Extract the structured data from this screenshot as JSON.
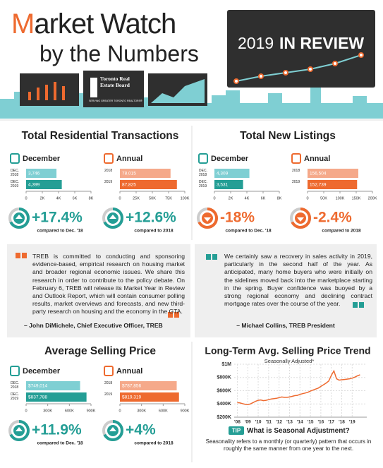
{
  "header": {
    "title": "Market Watch",
    "subtitle": "by the Numbers",
    "review_year": "2019",
    "review_label": "IN REVIEW",
    "logo_name": "Toronto Real Estate Board",
    "logo_tagline": "SERVING GREATER TORONTO REALTORS®"
  },
  "sections": [
    "Total Residential Transactions",
    "Total New Listings",
    "Average Selling Price",
    "Long-Term Avg. Selling Price Trend"
  ],
  "quotes": [
    {
      "text": "TREB is committed to conducting and sponsoring evidence-based, empirical research on housing market and broader regional economic issues. We share this research in order to contribute to the policy debate. On February 6, TREB will release its Market Year in Review and Outlook Report, which will contain consumer polling results, market overviews and forecasts, and new third-party research on housing and the economy in the GTA.",
      "author": "– John DiMichele, Chief Executive Officer, TREB"
    },
    {
      "text": "We certainly saw a recovery in sales activity in 2019, particularly in the second half of the year. As anticipated, many home buyers who were initially on the sidelines moved back into the marketplace starting in the spring. Buyer confidence was buoyed by a strong regional economy and declining contract mortgage rates over the course of the year.",
      "author": "– Michael Collins, TREB President"
    }
  ],
  "tip": {
    "badge": "TIP",
    "title": "What is Seasonal Adjustment?",
    "text": "Seasonality refers to a monthly (or quarterly) pattern that occurs in roughly the same manner from one year to the next."
  },
  "chart_data": [
    {
      "type": "bar",
      "title": "December",
      "categories": [
        "DEC. 2018",
        "DEC. 2019"
      ],
      "values": [
        3746,
        4399
      ],
      "value_labels": [
        "3,746",
        "4,399"
      ],
      "colors": [
        "#7fcfd3",
        "#249e95"
      ],
      "xlim": [
        0,
        8000
      ],
      "xticks": [
        0,
        {
          "value": 2000,
          "label": "2K"
        },
        {
          "value": 4000,
          "label": "4K"
        },
        {
          "value": 6000,
          "label": "6K"
        },
        {
          "value": 8000,
          "label": "8K"
        }
      ],
      "change": "+17.4%",
      "change_note": "compared to Dec. '18",
      "change_color": "#249e95"
    },
    {
      "type": "bar",
      "title": "Annual",
      "categories": [
        "2018",
        "2019"
      ],
      "values": [
        78015,
        87825
      ],
      "value_labels": [
        "78,015",
        "87,825"
      ],
      "colors": [
        "#f5a98a",
        "#ee6a2f"
      ],
      "xlim": [
        0,
        100000
      ],
      "xticks": [
        0,
        {
          "value": 25000,
          "label": "25K"
        },
        {
          "value": 50000,
          "label": "50K"
        },
        {
          "value": 75000,
          "label": "75K"
        },
        {
          "value": 100000,
          "label": "100K"
        }
      ],
      "change": "+12.6%",
      "change_note": "compared to 2018",
      "change_color": "#249e95"
    },
    {
      "type": "bar",
      "title": "December",
      "categories": [
        "DEC. 2018",
        "DEC. 2019"
      ],
      "values": [
        4309,
        3531
      ],
      "value_labels": [
        "4,309",
        "3,531"
      ],
      "colors": [
        "#7fcfd3",
        "#249e95"
      ],
      "xlim": [
        0,
        8000
      ],
      "xticks": [
        0,
        {
          "value": 2000,
          "label": "2K"
        },
        {
          "value": 4000,
          "label": "4K"
        },
        {
          "value": 6000,
          "label": "6K"
        },
        {
          "value": 8000,
          "label": "8K"
        }
      ],
      "change": "-18%",
      "change_note": "compared to Dec. '18",
      "change_color": "#ee6a2f"
    },
    {
      "type": "bar",
      "title": "Annual",
      "categories": [
        "2018",
        "2019"
      ],
      "values": [
        156504,
        152739
      ],
      "value_labels": [
        "156,504",
        "152,739"
      ],
      "colors": [
        "#f5a98a",
        "#ee6a2f"
      ],
      "xlim": [
        0,
        200000
      ],
      "xticks": [
        0,
        {
          "value": 50000,
          "label": "50K"
        },
        {
          "value": 100000,
          "label": "100K"
        },
        {
          "value": 150000,
          "label": "150K"
        },
        {
          "value": 200000,
          "label": "200K"
        }
      ],
      "change": "-2.4%",
      "change_note": "compared to 2018",
      "change_color": "#ee6a2f"
    },
    {
      "type": "bar",
      "title": "December",
      "categories": [
        "DEC. 2018",
        "DEC. 2019"
      ],
      "values": [
        749014,
        837788
      ],
      "value_labels": [
        "$749,014",
        "$837,788"
      ],
      "colors": [
        "#7fcfd3",
        "#249e95"
      ],
      "xlim": [
        0,
        900000
      ],
      "xticks": [
        0,
        {
          "value": 300000,
          "label": "300K"
        },
        {
          "value": 600000,
          "label": "600K"
        },
        {
          "value": 900000,
          "label": "900K"
        }
      ],
      "change": "+11.9%",
      "change_note": "compared to Dec. '18",
      "change_color": "#249e95"
    },
    {
      "type": "bar",
      "title": "Annual",
      "categories": [
        "2018",
        "2019"
      ],
      "values": [
        787856,
        819319
      ],
      "value_labels": [
        "$787,856",
        "$819,319"
      ],
      "colors": [
        "#f5a98a",
        "#ee6a2f"
      ],
      "xlim": [
        0,
        900000
      ],
      "xticks": [
        0,
        {
          "value": 300000,
          "label": "300K"
        },
        {
          "value": 600000,
          "label": "600K"
        },
        {
          "value": 900000,
          "label": "900K"
        }
      ],
      "change": "+4%",
      "change_note": "compared to 2018",
      "change_color": "#249e95"
    },
    {
      "type": "line",
      "subtitle": "Seasonally Adjusted*",
      "color": "#ee6a2f",
      "x": [
        2008,
        2008.25,
        2008.5,
        2008.75,
        2009,
        2009.25,
        2009.5,
        2009.75,
        2010,
        2010.25,
        2010.5,
        2010.75,
        2011,
        2011.25,
        2011.5,
        2011.75,
        2012,
        2012.25,
        2012.5,
        2012.75,
        2013,
        2013.25,
        2013.5,
        2013.75,
        2014,
        2014.25,
        2014.5,
        2014.75,
        2015,
        2015.25,
        2015.5,
        2015.75,
        2016,
        2016.25,
        2016.5,
        2016.75,
        2017,
        2017.25,
        2017.5,
        2017.75,
        2018,
        2018.25,
        2018.5,
        2018.75,
        2019,
        2019.25,
        2019.5,
        2019.75
      ],
      "values": [
        420000,
        415000,
        405000,
        395000,
        390000,
        400000,
        420000,
        440000,
        455000,
        460000,
        450000,
        455000,
        465000,
        475000,
        480000,
        485000,
        495000,
        505000,
        500000,
        500000,
        505000,
        515000,
        525000,
        530000,
        545000,
        555000,
        565000,
        575000,
        595000,
        610000,
        625000,
        640000,
        665000,
        690000,
        715000,
        745000,
        830000,
        900000,
        780000,
        760000,
        765000,
        770000,
        775000,
        780000,
        790000,
        805000,
        825000,
        840000
      ],
      "xlim": [
        2007.7,
        2020.4
      ],
      "xticks": [
        {
          "value": 2008,
          "label": "'08"
        },
        {
          "value": 2009,
          "label": "'09"
        },
        {
          "value": 2010,
          "label": "'10"
        },
        {
          "value": 2011,
          "label": "'11"
        },
        {
          "value": 2012,
          "label": "'12"
        },
        {
          "value": 2013,
          "label": "'13"
        },
        {
          "value": 2014,
          "label": "'14"
        },
        {
          "value": 2015,
          "label": "'15"
        },
        {
          "value": 2016,
          "label": "'16"
        },
        {
          "value": 2017,
          "label": "'17"
        },
        {
          "value": 2018,
          "label": "'18"
        },
        {
          "value": 2019,
          "label": "'19"
        }
      ],
      "ylim": [
        200000,
        1000000
      ],
      "yticks": [
        {
          "value": 200000,
          "label": "$200K"
        },
        {
          "value": 400000,
          "label": "$400K"
        },
        {
          "value": 600000,
          "label": "$600K"
        },
        {
          "value": 800000,
          "label": "$800K"
        },
        {
          "value": 1000000,
          "label": "$1M"
        }
      ],
      "grid": true
    }
  ]
}
